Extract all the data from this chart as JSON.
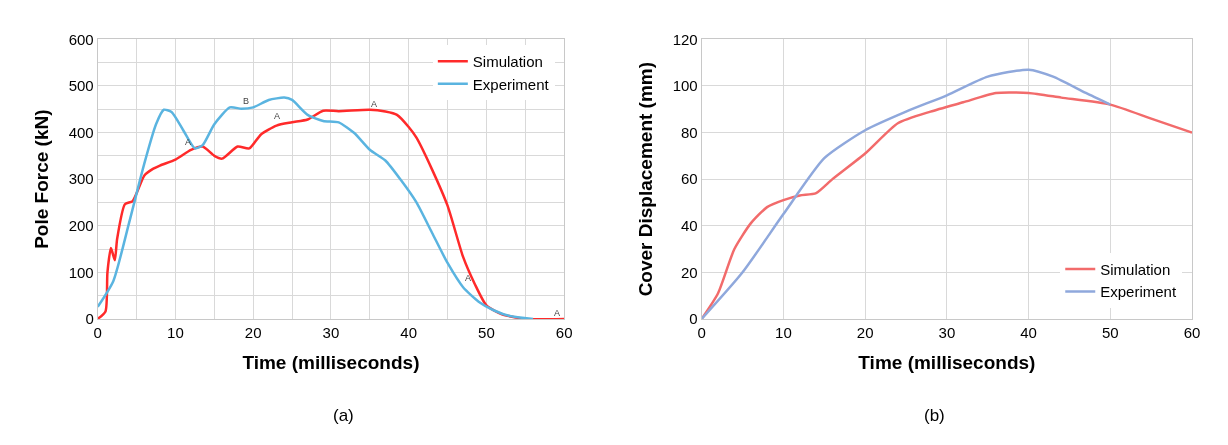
{
  "chart_data": [
    {
      "type": "line",
      "xlabel": "Time (milliseconds)",
      "ylabel": "Pole Force (kN)",
      "xlim": [
        0,
        60
      ],
      "xticks": [
        0,
        {
          "value": 5,
          "label": null
        },
        10,
        {
          "value": 15,
          "label": null
        },
        20,
        {
          "value": 25,
          "label": null
        },
        30,
        {
          "value": 35,
          "label": null
        },
        40,
        {
          "value": 45,
          "label": null
        },
        50,
        {
          "value": 55,
          "label": null
        },
        60
      ],
      "ylim": [
        0,
        600
      ],
      "yticks": [
        0,
        {
          "value": 50,
          "label": null
        },
        100,
        {
          "value": 150,
          "label": null
        },
        200,
        {
          "value": 250,
          "label": null
        },
        300,
        {
          "value": 350,
          "label": null
        },
        400,
        {
          "value": 450,
          "label": null
        },
        500,
        {
          "value": 550,
          "label": null
        },
        600
      ],
      "grid": true,
      "legend": "top right",
      "marker": "none",
      "line_style": "solid",
      "series": [
        {
          "name": "Simulation",
          "color": "#ff2a2a",
          "x": [
            0,
            1,
            1.25,
            1.7,
            2.2,
            2.5,
            3.5,
            4.5,
            6,
            7,
            8,
            10,
            12,
            13.5,
            15,
            16,
            18,
            19.5,
            21,
            23,
            25,
            27,
            29,
            31,
            35,
            37,
            38.5,
            40,
            41,
            43,
            45,
            47,
            48.5,
            50,
            52,
            55,
            60
          ],
          "values": [
            0,
            16,
            100,
            152,
            126,
            172,
            246,
            253,
            308,
            321,
            329,
            342,
            363,
            370,
            350,
            344,
            370,
            366,
            396,
            415,
            422,
            428,
            447,
            446,
            449,
            445,
            438,
            412,
            389,
            321,
            243,
            133,
            75,
            29,
            10,
            0,
            0
          ]
        },
        {
          "name": "Experiment",
          "color": "#5ab4e0",
          "x": [
            0,
            2,
            4,
            6,
            7.5,
            8.5,
            9.5,
            11,
            12.5,
            13.5,
            15,
            17,
            18.5,
            20,
            22,
            24,
            25,
            27,
            29,
            31,
            33,
            35,
            37,
            39,
            41,
            43,
            45,
            47,
            49,
            51,
            53,
            56
          ],
          "values": [
            26,
            81,
            204,
            334,
            418,
            449,
            444,
            405,
            366,
            373,
            418,
            454,
            451,
            454,
            470,
            475,
            470,
            438,
            425,
            422,
            399,
            363,
            340,
            298,
            250,
            185,
            120,
            68,
            37,
            18,
            6,
            0
          ]
        }
      ],
      "annotations": [
        "(a)",
        {
          "text": "A",
          "x": 12.5,
          "y": 366
        },
        {
          "text": "B",
          "x": 20,
          "y": 454
        },
        {
          "text": "A",
          "x": 24,
          "y": 422
        },
        {
          "text": "A",
          "x": 36.5,
          "y": 449
        },
        {
          "text": "A",
          "x": 48.5,
          "y": 75
        },
        {
          "text": "A",
          "x": 60,
          "y": 0
        }
      ]
    },
    {
      "type": "line",
      "xlabel": "Time (milliseconds)",
      "ylabel": "Cover Displacement (mm)",
      "xlim": [
        0,
        60
      ],
      "xticks": [
        0,
        10,
        20,
        30,
        40,
        50,
        60
      ],
      "ylim": [
        0,
        120
      ],
      "yticks": [
        0,
        20,
        40,
        60,
        80,
        100,
        120
      ],
      "grid": true,
      "legend": "bottom right",
      "marker": "none",
      "line_style": "solid",
      "series": [
        {
          "name": "Simulation",
          "color": "#f26b6b",
          "x": [
            0,
            2,
            4,
            6,
            8,
            10,
            12,
            14,
            16,
            20,
            24,
            28,
            32,
            36,
            40,
            44,
            50,
            55,
            60
          ],
          "values": [
            0,
            11,
            30,
            41,
            48,
            51,
            53,
            54,
            60,
            71,
            84,
            89,
            93,
            97,
            97,
            95,
            92,
            86,
            80
          ]
        },
        {
          "name": "Experiment",
          "color": "#8fa8dc",
          "x": [
            0,
            5,
            10,
            15,
            20,
            25,
            30,
            35,
            40,
            43,
            47,
            50
          ],
          "values": [
            0,
            20,
            45,
            69,
            81,
            89,
            96,
            104,
            107,
            104,
            97,
            92
          ]
        }
      ],
      "annotations": [
        "(b)"
      ]
    }
  ]
}
